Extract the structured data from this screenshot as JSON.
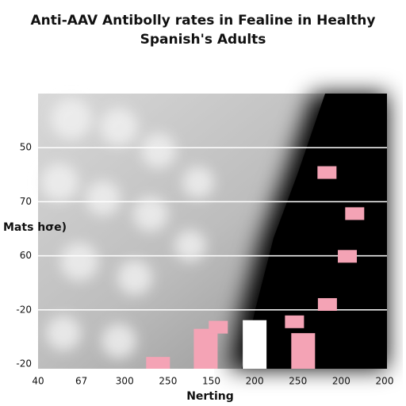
{
  "chart_data": {
    "type": "scatter",
    "title": [
      "Anti-AAV Antibolly rates in Fealine in Healthy",
      "Spanish's Adults"
    ],
    "xlabel": "Nerting",
    "ylabel": "Mats hσe)",
    "xlim": [
      0,
      8
    ],
    "ylim": [
      0,
      5
    ],
    "xticks": [
      {
        "value": 0,
        "label": "40"
      },
      {
        "value": 1,
        "label": "67"
      },
      {
        "value": 2,
        "label": "300"
      },
      {
        "value": 3,
        "label": "250"
      },
      {
        "value": 4,
        "label": "150"
      },
      {
        "value": 5,
        "label": "200"
      },
      {
        "value": 6,
        "label": "250"
      },
      {
        "value": 7,
        "label": "200"
      },
      {
        "value": 8,
        "label": "200"
      }
    ],
    "yticks": [
      {
        "value": 0,
        "label": "-20"
      },
      {
        "value": 1,
        "label": "-20"
      },
      {
        "value": 2,
        "label": "60"
      },
      {
        "value": 3,
        "label": "70"
      },
      {
        "value": 4,
        "label": "50"
      }
    ],
    "grid": true,
    "series": [
      {
        "color": "#f4a3b5",
        "x": [
          6.67,
          7.31,
          7.14,
          6.68,
          5.92,
          4.16
        ],
        "values": [
          3.54,
          2.78,
          1.99,
          1.1,
          0.78,
          0.68
        ]
      }
    ],
    "bars": {
      "x": [
        2.77,
        3.87,
        5.0,
        6.12
      ],
      "values": [
        0.13,
        0.65,
        0.81,
        0.57
      ],
      "colors": [
        "#f4a3b5",
        "#f4a3b5",
        "#ffffff",
        "#f4a3b5"
      ]
    }
  }
}
